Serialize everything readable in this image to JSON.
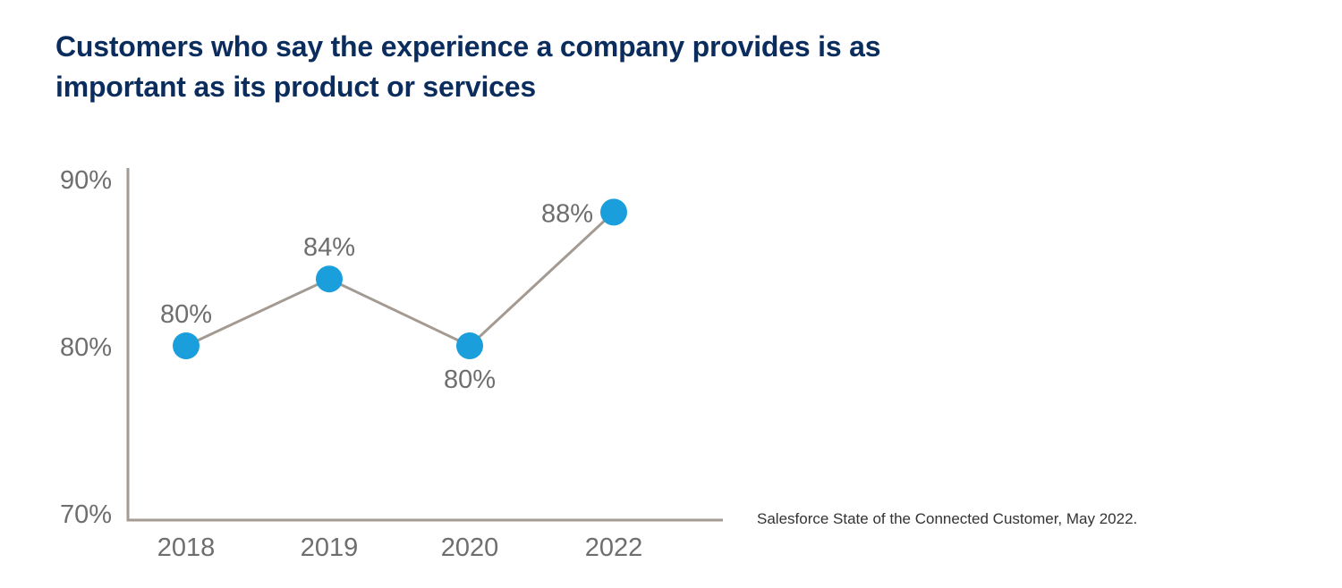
{
  "chart_data": {
    "type": "line",
    "title": "Customers who say the experience a company provides is as important as its product or services",
    "categories": [
      "2018",
      "2019",
      "2020",
      "2022"
    ],
    "values": [
      80,
      84,
      80,
      88
    ],
    "data_labels": [
      "80%",
      "84%",
      "80%",
      "88%"
    ],
    "ylim": [
      70,
      90
    ],
    "yticks": [
      70,
      80,
      90
    ],
    "ytick_labels": [
      "70%",
      "80%",
      "90%"
    ],
    "xlabel": "",
    "ylabel": "",
    "grid": false,
    "colors": {
      "line": "#a39a92",
      "marker": "#1a9fdc",
      "axis": "#a39a92",
      "title": "#0b2d5e"
    }
  },
  "source": "Salesforce State of the Connected Customer, May 2022."
}
